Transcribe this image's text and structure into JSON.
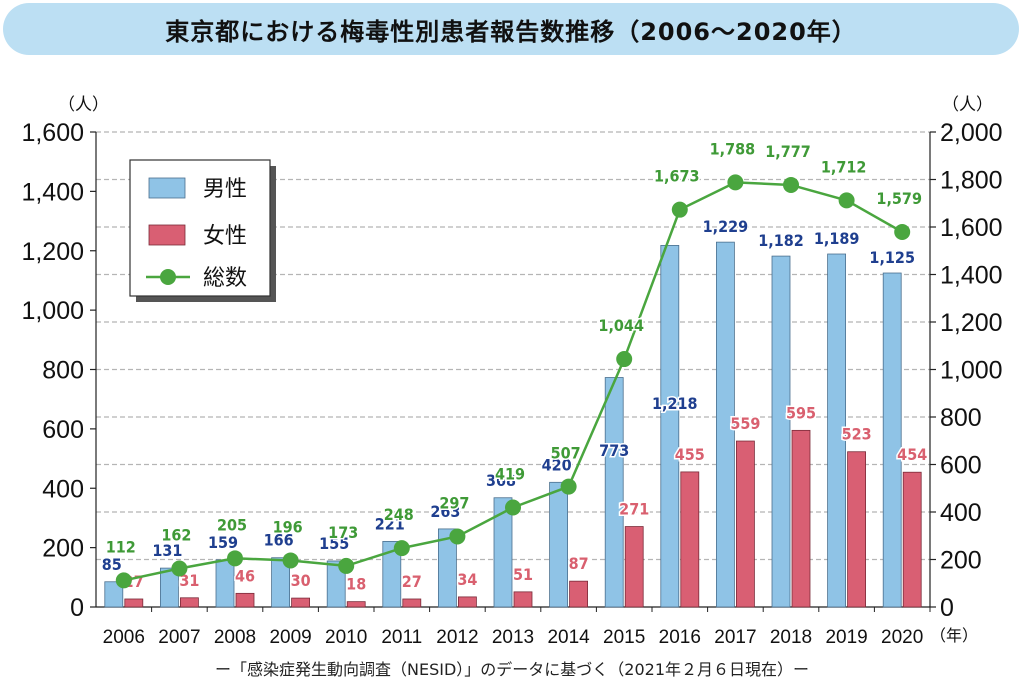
{
  "chart_data": {
    "type": "bar+line",
    "title": "東京都における梅毒性別患者報告数推移（2006〜2020年）",
    "source": "ー「感染症発生動向調査（NESID）」のデータに基づく（2021年２月６日現在）ー",
    "x_unit": "（年）",
    "y_left_unit": "（人）",
    "y_right_unit": "（人）",
    "categories": [
      "2006",
      "2007",
      "2008",
      "2009",
      "2010",
      "2011",
      "2012",
      "2013",
      "2014",
      "2015",
      "2016",
      "2017",
      "2018",
      "2019",
      "2020"
    ],
    "ylim_left": [
      0,
      1600
    ],
    "yticks_left": [
      0,
      200,
      400,
      600,
      800,
      1000,
      1200,
      1400,
      1600
    ],
    "ylim_right": [
      0,
      2000
    ],
    "yticks_right": [
      0,
      200,
      400,
      600,
      800,
      1000,
      1200,
      1400,
      1600,
      1800,
      2000
    ],
    "grid": true,
    "legend_position": "top-left",
    "series": [
      {
        "name": "男性",
        "type": "bar",
        "axis": "left",
        "color": "#8fc3e6",
        "label_color": "#1f3f8f",
        "values": [
          85,
          131,
          159,
          166,
          155,
          221,
          263,
          368,
          420,
          773,
          1218,
          1229,
          1182,
          1189,
          1125
        ]
      },
      {
        "name": "女性",
        "type": "bar",
        "axis": "left",
        "color": "#d95f73",
        "label_color": "#d9606f",
        "values": [
          27,
          31,
          46,
          30,
          18,
          27,
          34,
          51,
          87,
          271,
          455,
          559,
          595,
          523,
          454
        ]
      },
      {
        "name": "総数",
        "type": "line",
        "axis": "right",
        "color": "#4aa63f",
        "label_color": "#3f9a37",
        "values": [
          112,
          162,
          205,
          196,
          173,
          248,
          297,
          419,
          507,
          1044,
          1673,
          1788,
          1777,
          1712,
          1579
        ]
      }
    ]
  }
}
